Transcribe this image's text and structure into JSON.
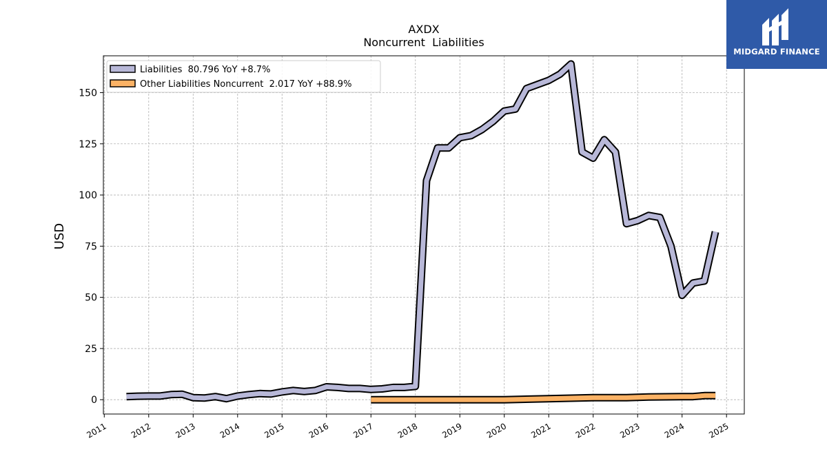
{
  "chart_data": {
    "type": "area",
    "title": "AXDX",
    "subtitle": "Noncurrent  Liabilities",
    "ylabel": "USD",
    "xlabel": "",
    "xlim": [
      2010.98,
      2025.4
    ],
    "ylim": [
      -7,
      168
    ],
    "yticks": [
      0,
      25,
      50,
      75,
      100,
      125,
      150
    ],
    "xticks": [
      2011,
      2012,
      2013,
      2014,
      2015,
      2016,
      2017,
      2018,
      2019,
      2020,
      2021,
      2022,
      2023,
      2024,
      2025
    ],
    "grid": true,
    "legend_position": "top-left",
    "series": [
      {
        "name": "Liabilities",
        "legend_label": "Liabilities  80.796 YoY +8.7%",
        "color": "#b8b8d8",
        "x": [
          2011.5,
          2011.75,
          2012.0,
          2012.25,
          2012.5,
          2012.75,
          2013.0,
          2013.25,
          2013.5,
          2013.75,
          2014.0,
          2014.25,
          2014.5,
          2014.75,
          2015.0,
          2015.25,
          2015.5,
          2015.75,
          2016.0,
          2016.25,
          2016.5,
          2016.75,
          2017.0,
          2017.25,
          2017.5,
          2017.75,
          2018.0,
          2018.25,
          2018.5,
          2018.75,
          2019.0,
          2019.25,
          2019.5,
          2019.75,
          2020.0,
          2020.25,
          2020.5,
          2020.75,
          2021.0,
          2021.25,
          2021.5,
          2021.75,
          2022.0,
          2022.25,
          2022.5,
          2022.75,
          2023.0,
          2023.25,
          2023.5,
          2023.75,
          2024.0,
          2024.25,
          2024.5,
          2024.75
        ],
        "y": [
          1.5,
          1.7,
          1.8,
          1.8,
          2.5,
          2.7,
          1.0,
          0.8,
          1.5,
          0.5,
          1.8,
          2.5,
          3.0,
          2.8,
          3.8,
          4.5,
          4.0,
          4.5,
          6.3,
          6.0,
          5.5,
          5.5,
          5.0,
          5.3,
          6.0,
          6.0,
          6.5,
          107,
          123,
          123,
          128,
          129,
          132,
          136,
          141,
          142,
          152,
          154,
          156,
          159,
          164,
          121,
          118,
          127,
          121,
          86,
          87.5,
          90,
          89,
          75,
          51,
          57,
          58,
          82
        ]
      },
      {
        "name": "Other Liabilities Noncurrent",
        "legend_label": "Other Liabilities Noncurrent  2.017 YoY +88.9%",
        "color": "#fbb265",
        "x": [
          2017.0,
          2018.0,
          2019.0,
          2020.0,
          2021.0,
          2022.0,
          2022.75,
          2023.25,
          2024.0,
          2024.25,
          2024.5,
          2024.75
        ],
        "y": [
          0.0,
          0.0,
          0.0,
          0.0,
          0.5,
          1.0,
          1.0,
          1.3,
          1.5,
          1.5,
          2.0,
          2.0
        ]
      }
    ]
  },
  "brand": {
    "name": "MIDGARD FINANCE",
    "logo_icon": "midgard-logo-icon",
    "background": "#2f5aa8"
  }
}
